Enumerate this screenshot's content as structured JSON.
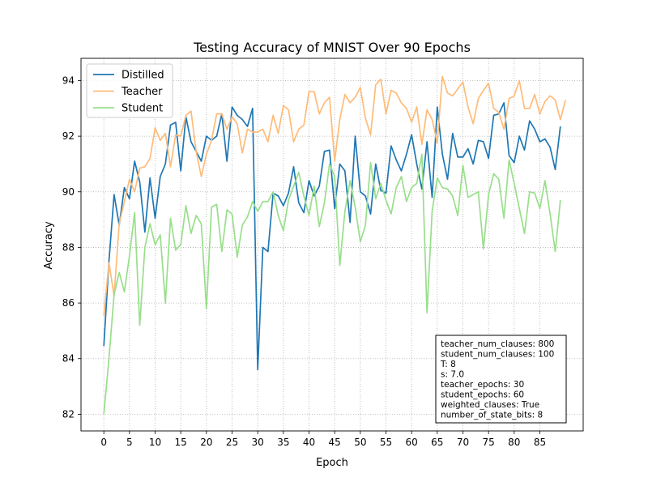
{
  "chart_data": {
    "type": "line",
    "title": "Testing Accuracy of MNIST Over 90 Epochs",
    "xlabel": "Epoch",
    "ylabel": "Accuracy",
    "xlim": [
      -4.45,
      93.45
    ],
    "ylim": [
      81.4,
      94.8
    ],
    "xticks": [
      0,
      5,
      10,
      15,
      20,
      25,
      30,
      35,
      40,
      45,
      50,
      55,
      60,
      65,
      70,
      75,
      80,
      85
    ],
    "yticks": [
      82,
      84,
      86,
      88,
      90,
      92,
      94
    ],
    "grid": true,
    "legend_position": "top-left",
    "series": [
      {
        "name": "Distilled",
        "color": "#1f77b4",
        "values": [
          84.45,
          87.5,
          89.9,
          88.8,
          90.15,
          89.75,
          91.1,
          90.35,
          88.55,
          90.5,
          89.05,
          90.55,
          91.0,
          92.4,
          92.5,
          90.75,
          92.7,
          91.8,
          91.45,
          91.1,
          92.0,
          91.85,
          92.0,
          92.8,
          91.1,
          93.05,
          92.75,
          92.6,
          92.35,
          93.0,
          83.6,
          88.0,
          87.85,
          89.95,
          89.85,
          89.5,
          89.95,
          90.9,
          89.6,
          89.25,
          90.4,
          89.85,
          90.2,
          91.45,
          91.5,
          89.4,
          91.0,
          90.75,
          88.9,
          92.0,
          90.0,
          89.85,
          89.2,
          91.0,
          90.05,
          89.95,
          91.65,
          91.15,
          90.75,
          91.35,
          92.05,
          91.0,
          90.1,
          91.8,
          89.8,
          93.05,
          91.35,
          90.45,
          92.1,
          91.25,
          91.25,
          91.55,
          91.0,
          91.85,
          91.8,
          91.2,
          92.75,
          92.8,
          93.2,
          91.3,
          91.05,
          92.0,
          91.5,
          92.55,
          92.25,
          91.8,
          91.9,
          91.6,
          90.8,
          92.35
        ]
      },
      {
        "name": "Teacher",
        "color": "#ffbb78",
        "values": [
          85.55,
          87.45,
          86.25,
          88.85,
          89.65,
          90.45,
          90.0,
          90.85,
          90.9,
          91.2,
          92.3,
          91.85,
          92.1,
          90.9,
          92.05,
          92.0,
          92.75,
          92.9,
          91.45,
          90.55,
          91.35,
          91.85,
          92.8,
          92.8,
          92.25,
          92.7,
          92.45,
          91.4,
          92.25,
          92.15,
          92.15,
          92.25,
          91.8,
          92.75,
          92.1,
          93.1,
          92.95,
          91.8,
          92.25,
          92.4,
          93.6,
          93.6,
          92.8,
          93.2,
          93.4,
          91.1,
          92.6,
          93.5,
          93.2,
          93.4,
          93.75,
          92.65,
          92.05,
          93.85,
          94.05,
          92.8,
          93.65,
          93.55,
          93.2,
          93.0,
          92.5,
          93.05,
          91.7,
          92.95,
          92.6,
          91.75,
          94.15,
          93.55,
          93.45,
          93.7,
          93.95,
          93.05,
          92.45,
          93.35,
          93.65,
          93.9,
          93.0,
          92.85,
          92.25,
          93.35,
          93.45,
          94.0,
          93.0,
          93.0,
          93.5,
          92.8,
          93.25,
          93.45,
          93.3,
          92.6,
          93.3
        ]
      },
      {
        "name": "Student",
        "color": "#98df8a",
        "values": [
          82.0,
          84.0,
          86.3,
          87.1,
          86.4,
          87.7,
          89.25,
          85.2,
          88.0,
          88.85,
          88.1,
          88.45,
          86.0,
          89.05,
          87.9,
          88.1,
          89.5,
          88.5,
          89.15,
          88.85,
          85.8,
          89.45,
          89.55,
          87.85,
          89.35,
          89.2,
          87.65,
          88.8,
          89.1,
          89.65,
          89.3,
          89.65,
          89.65,
          90.0,
          89.15,
          88.6,
          89.7,
          90.2,
          90.7,
          89.85,
          89.15,
          90.2,
          88.75,
          89.6,
          91.0,
          90.55,
          87.35,
          89.3,
          90.4,
          89.45,
          88.2,
          88.8,
          91.05,
          89.75,
          90.3,
          89.7,
          89.2,
          90.15,
          90.55,
          89.65,
          90.15,
          90.3,
          91.35,
          85.65,
          89.3,
          90.5,
          90.15,
          90.1,
          89.85,
          89.15,
          90.95,
          89.8,
          89.9,
          90.0,
          87.95,
          89.9,
          90.65,
          90.45,
          89.05,
          91.15,
          90.3,
          89.4,
          88.5,
          90.0,
          89.95,
          89.4,
          90.4,
          89.2,
          87.85,
          89.7
        ]
      }
    ],
    "annotation_lines": [
      "teacher_num_clauses: 800",
      "student_num_clauses: 100",
      "T: 8",
      "s: 7.0",
      "teacher_epochs: 30",
      "student_epochs: 60",
      "weighted_clauses: True",
      "number_of_state_bits: 8"
    ]
  }
}
